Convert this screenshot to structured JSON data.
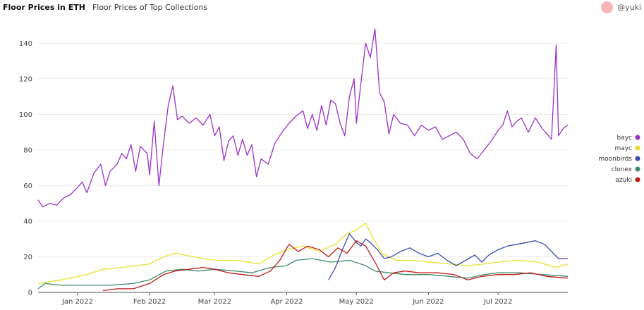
{
  "header": {
    "title": "Floor Prices in ETH",
    "subtitle": "Floor Prices of Top Collections"
  },
  "author": {
    "handle": "@yuki",
    "avatar_color": "#f6b6b8"
  },
  "chart_data": {
    "type": "line",
    "title": "Floor Prices in ETH",
    "subtitle": "Floor Prices of Top Collections",
    "xlabel": "",
    "ylabel": "",
    "x_range": [
      "2021-12-15",
      "2022-07-31"
    ],
    "ylim": [
      0,
      150
    ],
    "yticks": [
      0,
      20,
      40,
      60,
      80,
      100,
      120,
      140
    ],
    "xticks": [
      {
        "date": "2022-01-01",
        "label": "Jan 2022"
      },
      {
        "date": "2022-02-01",
        "label": "Feb 2022"
      },
      {
        "date": "2022-03-01",
        "label": "Mar 2022"
      },
      {
        "date": "2022-04-01",
        "label": "Apr 2022"
      },
      {
        "date": "2022-05-01",
        "label": "May 2022"
      },
      {
        "date": "2022-06-01",
        "label": "Jun 2022"
      },
      {
        "date": "2022-07-01",
        "label": "Jul 2022"
      }
    ],
    "grid": "horizontal",
    "legend_position": "right",
    "series": [
      {
        "name": "bayc",
        "color": "#9b30c8",
        "points": [
          [
            "2021-12-15",
            52
          ],
          [
            "2021-12-17",
            48
          ],
          [
            "2021-12-20",
            50
          ],
          [
            "2021-12-23",
            49
          ],
          [
            "2021-12-26",
            53
          ],
          [
            "2021-12-29",
            55
          ],
          [
            "2022-01-01",
            59
          ],
          [
            "2022-01-03",
            62
          ],
          [
            "2022-01-05",
            56
          ],
          [
            "2022-01-08",
            67
          ],
          [
            "2022-01-11",
            72
          ],
          [
            "2022-01-13",
            60
          ],
          [
            "2022-01-15",
            68
          ],
          [
            "2022-01-18",
            72
          ],
          [
            "2022-01-20",
            78
          ],
          [
            "2022-01-22",
            75
          ],
          [
            "2022-01-24",
            83
          ],
          [
            "2022-01-26",
            68
          ],
          [
            "2022-01-28",
            82
          ],
          [
            "2022-01-31",
            78
          ],
          [
            "2022-02-01",
            66
          ],
          [
            "2022-02-03",
            96
          ],
          [
            "2022-02-05",
            60
          ],
          [
            "2022-02-07",
            84
          ],
          [
            "2022-02-09",
            105
          ],
          [
            "2022-02-11",
            116
          ],
          [
            "2022-02-13",
            97
          ],
          [
            "2022-02-15",
            99
          ],
          [
            "2022-02-18",
            95
          ],
          [
            "2022-02-21",
            98
          ],
          [
            "2022-02-24",
            94
          ],
          [
            "2022-02-27",
            100
          ],
          [
            "2022-03-01",
            88
          ],
          [
            "2022-03-03",
            93
          ],
          [
            "2022-03-05",
            74
          ],
          [
            "2022-03-07",
            85
          ],
          [
            "2022-03-09",
            88
          ],
          [
            "2022-03-11",
            77
          ],
          [
            "2022-03-13",
            86
          ],
          [
            "2022-03-15",
            77
          ],
          [
            "2022-03-17",
            83
          ],
          [
            "2022-03-19",
            65
          ],
          [
            "2022-03-21",
            75
          ],
          [
            "2022-03-24",
            72
          ],
          [
            "2022-03-27",
            84
          ],
          [
            "2022-03-30",
            90
          ],
          [
            "2022-04-02",
            95
          ],
          [
            "2022-04-05",
            99
          ],
          [
            "2022-04-08",
            102
          ],
          [
            "2022-04-10",
            92
          ],
          [
            "2022-04-12",
            100
          ],
          [
            "2022-04-14",
            91
          ],
          [
            "2022-04-16",
            105
          ],
          [
            "2022-04-18",
            94
          ],
          [
            "2022-04-20",
            108
          ],
          [
            "2022-04-22",
            106
          ],
          [
            "2022-04-24",
            95
          ],
          [
            "2022-04-26",
            88
          ],
          [
            "2022-04-28",
            110
          ],
          [
            "2022-04-30",
            120
          ],
          [
            "2022-05-01",
            95
          ],
          [
            "2022-05-03",
            118
          ],
          [
            "2022-05-05",
            140
          ],
          [
            "2022-05-07",
            132
          ],
          [
            "2022-05-09",
            148
          ],
          [
            "2022-05-11",
            112
          ],
          [
            "2022-05-13",
            107
          ],
          [
            "2022-05-15",
            89
          ],
          [
            "2022-05-17",
            100
          ],
          [
            "2022-05-20",
            95
          ],
          [
            "2022-05-23",
            94
          ],
          [
            "2022-05-26",
            88
          ],
          [
            "2022-05-29",
            94
          ],
          [
            "2022-06-01",
            91
          ],
          [
            "2022-06-04",
            93
          ],
          [
            "2022-06-07",
            86
          ],
          [
            "2022-06-10",
            88
          ],
          [
            "2022-06-13",
            90
          ],
          [
            "2022-06-16",
            86
          ],
          [
            "2022-06-19",
            78
          ],
          [
            "2022-06-22",
            75
          ],
          [
            "2022-06-25",
            80
          ],
          [
            "2022-06-28",
            85
          ],
          [
            "2022-07-01",
            91
          ],
          [
            "2022-07-03",
            94
          ],
          [
            "2022-07-05",
            102
          ],
          [
            "2022-07-07",
            93
          ],
          [
            "2022-07-09",
            96
          ],
          [
            "2022-07-11",
            98
          ],
          [
            "2022-07-14",
            90
          ],
          [
            "2022-07-17",
            98
          ],
          [
            "2022-07-20",
            92
          ],
          [
            "2022-07-22",
            89
          ],
          [
            "2022-07-24",
            86
          ],
          [
            "2022-07-26",
            139
          ],
          [
            "2022-07-27",
            88
          ],
          [
            "2022-07-29",
            92
          ],
          [
            "2022-07-31",
            94
          ]
        ]
      },
      {
        "name": "mayc",
        "color": "#e8e02a",
        "points": [
          [
            "2021-12-15",
            5
          ],
          [
            "2021-12-25",
            7
          ],
          [
            "2022-01-05",
            10
          ],
          [
            "2022-01-12",
            13
          ],
          [
            "2022-01-20",
            14
          ],
          [
            "2022-02-01",
            16
          ],
          [
            "2022-02-07",
            20
          ],
          [
            "2022-02-12",
            22
          ],
          [
            "2022-02-20",
            20
          ],
          [
            "2022-03-01",
            18
          ],
          [
            "2022-03-10",
            18
          ],
          [
            "2022-03-20",
            16
          ],
          [
            "2022-03-25",
            20
          ],
          [
            "2022-04-01",
            24
          ],
          [
            "2022-04-08",
            26
          ],
          [
            "2022-04-15",
            23
          ],
          [
            "2022-04-22",
            27
          ],
          [
            "2022-04-27",
            33
          ],
          [
            "2022-05-01",
            35
          ],
          [
            "2022-05-05",
            39
          ],
          [
            "2022-05-08",
            31
          ],
          [
            "2022-05-12",
            22
          ],
          [
            "2022-05-18",
            18
          ],
          [
            "2022-05-25",
            18
          ],
          [
            "2022-06-01",
            17
          ],
          [
            "2022-06-10",
            16
          ],
          [
            "2022-06-18",
            15
          ],
          [
            "2022-06-25",
            16
          ],
          [
            "2022-07-01",
            17
          ],
          [
            "2022-07-10",
            18
          ],
          [
            "2022-07-18",
            17
          ],
          [
            "2022-07-26",
            14
          ],
          [
            "2022-07-31",
            16
          ]
        ]
      },
      {
        "name": "moonbirds",
        "color": "#3a4bb0",
        "points": [
          [
            "2022-04-19",
            7
          ],
          [
            "2022-04-22",
            14
          ],
          [
            "2022-04-25",
            24
          ],
          [
            "2022-04-28",
            33
          ],
          [
            "2022-05-01",
            28
          ],
          [
            "2022-05-03",
            26
          ],
          [
            "2022-05-05",
            30
          ],
          [
            "2022-05-07",
            28
          ],
          [
            "2022-05-10",
            24
          ],
          [
            "2022-05-13",
            19
          ],
          [
            "2022-05-16",
            20
          ],
          [
            "2022-05-20",
            23
          ],
          [
            "2022-05-24",
            25
          ],
          [
            "2022-05-28",
            22
          ],
          [
            "2022-06-01",
            20
          ],
          [
            "2022-06-05",
            22
          ],
          [
            "2022-06-09",
            18
          ],
          [
            "2022-06-13",
            15
          ],
          [
            "2022-06-17",
            18
          ],
          [
            "2022-06-21",
            21
          ],
          [
            "2022-06-24",
            17
          ],
          [
            "2022-06-27",
            21
          ],
          [
            "2022-07-01",
            24
          ],
          [
            "2022-07-05",
            26
          ],
          [
            "2022-07-09",
            27
          ],
          [
            "2022-07-13",
            28
          ],
          [
            "2022-07-17",
            29
          ],
          [
            "2022-07-21",
            27
          ],
          [
            "2022-07-24",
            23
          ],
          [
            "2022-07-27",
            19
          ],
          [
            "2022-07-31",
            19
          ]
        ]
      },
      {
        "name": "clonex",
        "color": "#3e8b6a",
        "points": [
          [
            "2021-12-15",
            2
          ],
          [
            "2021-12-18",
            5
          ],
          [
            "2021-12-25",
            4
          ],
          [
            "2022-01-05",
            4
          ],
          [
            "2022-01-15",
            4
          ],
          [
            "2022-01-25",
            5
          ],
          [
            "2022-02-01",
            7
          ],
          [
            "2022-02-08",
            12
          ],
          [
            "2022-02-15",
            13
          ],
          [
            "2022-02-22",
            12
          ],
          [
            "2022-03-01",
            13
          ],
          [
            "2022-03-10",
            12
          ],
          [
            "2022-03-17",
            11
          ],
          [
            "2022-03-25",
            14
          ],
          [
            "2022-04-01",
            15
          ],
          [
            "2022-04-05",
            18
          ],
          [
            "2022-04-12",
            19
          ],
          [
            "2022-04-20",
            17
          ],
          [
            "2022-04-28",
            18
          ],
          [
            "2022-05-05",
            15
          ],
          [
            "2022-05-09",
            12
          ],
          [
            "2022-05-15",
            11
          ],
          [
            "2022-05-22",
            10
          ],
          [
            "2022-06-01",
            10
          ],
          [
            "2022-06-10",
            9
          ],
          [
            "2022-06-18",
            8
          ],
          [
            "2022-06-25",
            10
          ],
          [
            "2022-07-01",
            11
          ],
          [
            "2022-07-10",
            11
          ],
          [
            "2022-07-20",
            10
          ],
          [
            "2022-07-31",
            9
          ]
        ]
      },
      {
        "name": "azuki",
        "color": "#c01a1a",
        "points": [
          [
            "2022-01-12",
            1
          ],
          [
            "2022-01-18",
            2
          ],
          [
            "2022-01-25",
            2
          ],
          [
            "2022-02-01",
            5
          ],
          [
            "2022-02-07",
            10
          ],
          [
            "2022-02-12",
            12
          ],
          [
            "2022-02-18",
            13
          ],
          [
            "2022-02-24",
            14
          ],
          [
            "2022-03-01",
            13
          ],
          [
            "2022-03-07",
            11
          ],
          [
            "2022-03-13",
            10
          ],
          [
            "2022-03-20",
            9
          ],
          [
            "2022-03-25",
            12
          ],
          [
            "2022-03-29",
            18
          ],
          [
            "2022-04-02",
            27
          ],
          [
            "2022-04-06",
            23
          ],
          [
            "2022-04-10",
            26
          ],
          [
            "2022-04-15",
            24
          ],
          [
            "2022-04-19",
            20
          ],
          [
            "2022-04-23",
            25
          ],
          [
            "2022-04-27",
            22
          ],
          [
            "2022-05-01",
            29
          ],
          [
            "2022-05-05",
            26
          ],
          [
            "2022-05-09",
            17
          ],
          [
            "2022-05-13",
            7
          ],
          [
            "2022-05-17",
            11
          ],
          [
            "2022-05-22",
            12
          ],
          [
            "2022-05-28",
            11
          ],
          [
            "2022-06-05",
            11
          ],
          [
            "2022-06-12",
            10
          ],
          [
            "2022-06-18",
            7
          ],
          [
            "2022-06-24",
            9
          ],
          [
            "2022-07-01",
            10
          ],
          [
            "2022-07-08",
            10
          ],
          [
            "2022-07-15",
            11
          ],
          [
            "2022-07-22",
            9
          ],
          [
            "2022-07-31",
            8
          ]
        ]
      }
    ]
  }
}
